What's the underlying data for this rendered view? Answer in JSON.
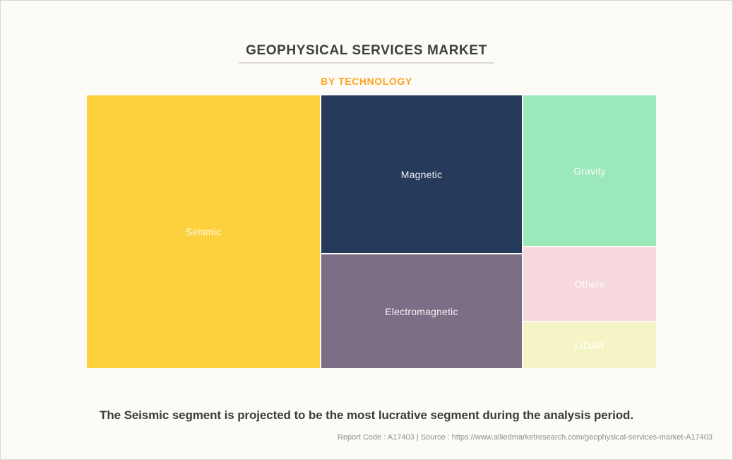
{
  "header": {
    "title": "GEOPHYSICAL SERVICES MARKET",
    "subtitle": "BY TECHNOLOGY"
  },
  "chart_data": {
    "type": "treemap",
    "title": "GEOPHYSICAL SERVICES MARKET",
    "subtitle": "BY TECHNOLOGY",
    "values_shown": false,
    "legend": "none",
    "segments": [
      {
        "label": "Seismic",
        "color": "#FCD13D",
        "text_color": "#FFFFFF",
        "area_pct_est": 41.0
      },
      {
        "label": "Magnetic",
        "color": "#263A5B",
        "text_color": "#FFFFFF",
        "area_pct_est": 20.5
      },
      {
        "label": "Electromagnetic",
        "color": "#7C6E85",
        "text_color": "#FFFFFF",
        "area_pct_est": 14.6
      },
      {
        "label": "Gravity",
        "color": "#9BE8BA",
        "text_color": "#FFFFFF",
        "area_pct_est": 13.0
      },
      {
        "label": "Others",
        "color": "#F6D8DE",
        "text_color": "#FFFFFF",
        "area_pct_est": 6.4
      },
      {
        "label": "LIDAR",
        "color": "#F5F4C6",
        "text_color": "#FFFFFF",
        "area_pct_est": 4.5
      }
    ]
  },
  "caption": "The Seismic segment is projected to be the most lucrative segment during the analysis period.",
  "footer": {
    "text": "Report Code : A17403  |  Source : https://www.alliedmarketresearch.com/geophysical-services-market-A17403"
  },
  "colors": {
    "background": "#FDFBF7",
    "page_border": "#D8D6D2",
    "title_text": "#3E3E3E",
    "subtitle_accent": "#FBA522",
    "caption_text": "#3C3C3C",
    "source_text": "#8F8F8F"
  }
}
